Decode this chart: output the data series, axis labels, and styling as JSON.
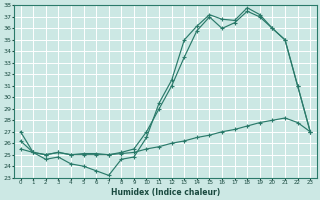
{
  "xlabel": "Humidex (Indice chaleur)",
  "bg_color": "#cce8e4",
  "grid_color": "#ffffff",
  "line_color": "#2a7a6a",
  "xlim": [
    -0.5,
    23.5
  ],
  "ylim": [
    23,
    38
  ],
  "xticks": [
    0,
    1,
    2,
    3,
    4,
    5,
    6,
    7,
    8,
    9,
    10,
    11,
    12,
    13,
    14,
    15,
    16,
    17,
    18,
    19,
    20,
    21,
    22,
    23
  ],
  "yticks": [
    23,
    24,
    25,
    26,
    27,
    28,
    29,
    30,
    31,
    32,
    33,
    34,
    35,
    36,
    37,
    38
  ],
  "line1_x": [
    0,
    1,
    2,
    3,
    4,
    5,
    6,
    7,
    8,
    9,
    10,
    11,
    12,
    13,
    14,
    15,
    16,
    17,
    18,
    19,
    20,
    21,
    22,
    23
  ],
  "line1_y": [
    27,
    25.2,
    24.6,
    24.8,
    24.2,
    24.0,
    23.6,
    23.2,
    24.6,
    24.8,
    26.5,
    29.5,
    31.5,
    35.0,
    36.2,
    37.2,
    36.8,
    36.7,
    37.8,
    37.2,
    36.0,
    35.0,
    31.0,
    27.0
  ],
  "line2_x": [
    0,
    1,
    2,
    3,
    4,
    5,
    6,
    7,
    8,
    9,
    10,
    11,
    12,
    13,
    14,
    15,
    16,
    17,
    18,
    19,
    20,
    21,
    22,
    23
  ],
  "line2_y": [
    26.2,
    25.2,
    25.0,
    25.2,
    25.0,
    25.0,
    25.0,
    25.0,
    25.2,
    25.5,
    27.0,
    29.0,
    31.0,
    33.5,
    35.8,
    37.0,
    36.0,
    36.5,
    37.5,
    37.0,
    36.0,
    35.0,
    31.0,
    27.0
  ],
  "line3_x": [
    0,
    1,
    2,
    3,
    4,
    5,
    6,
    7,
    8,
    9,
    10,
    11,
    12,
    13,
    14,
    15,
    16,
    17,
    18,
    19,
    20,
    21,
    22,
    23
  ],
  "line3_y": [
    25.5,
    25.2,
    25.0,
    25.2,
    25.0,
    25.1,
    25.1,
    25.0,
    25.1,
    25.2,
    25.5,
    25.7,
    26.0,
    26.2,
    26.5,
    26.7,
    27.0,
    27.2,
    27.5,
    27.8,
    28.0,
    28.2,
    27.8,
    27.0
  ]
}
